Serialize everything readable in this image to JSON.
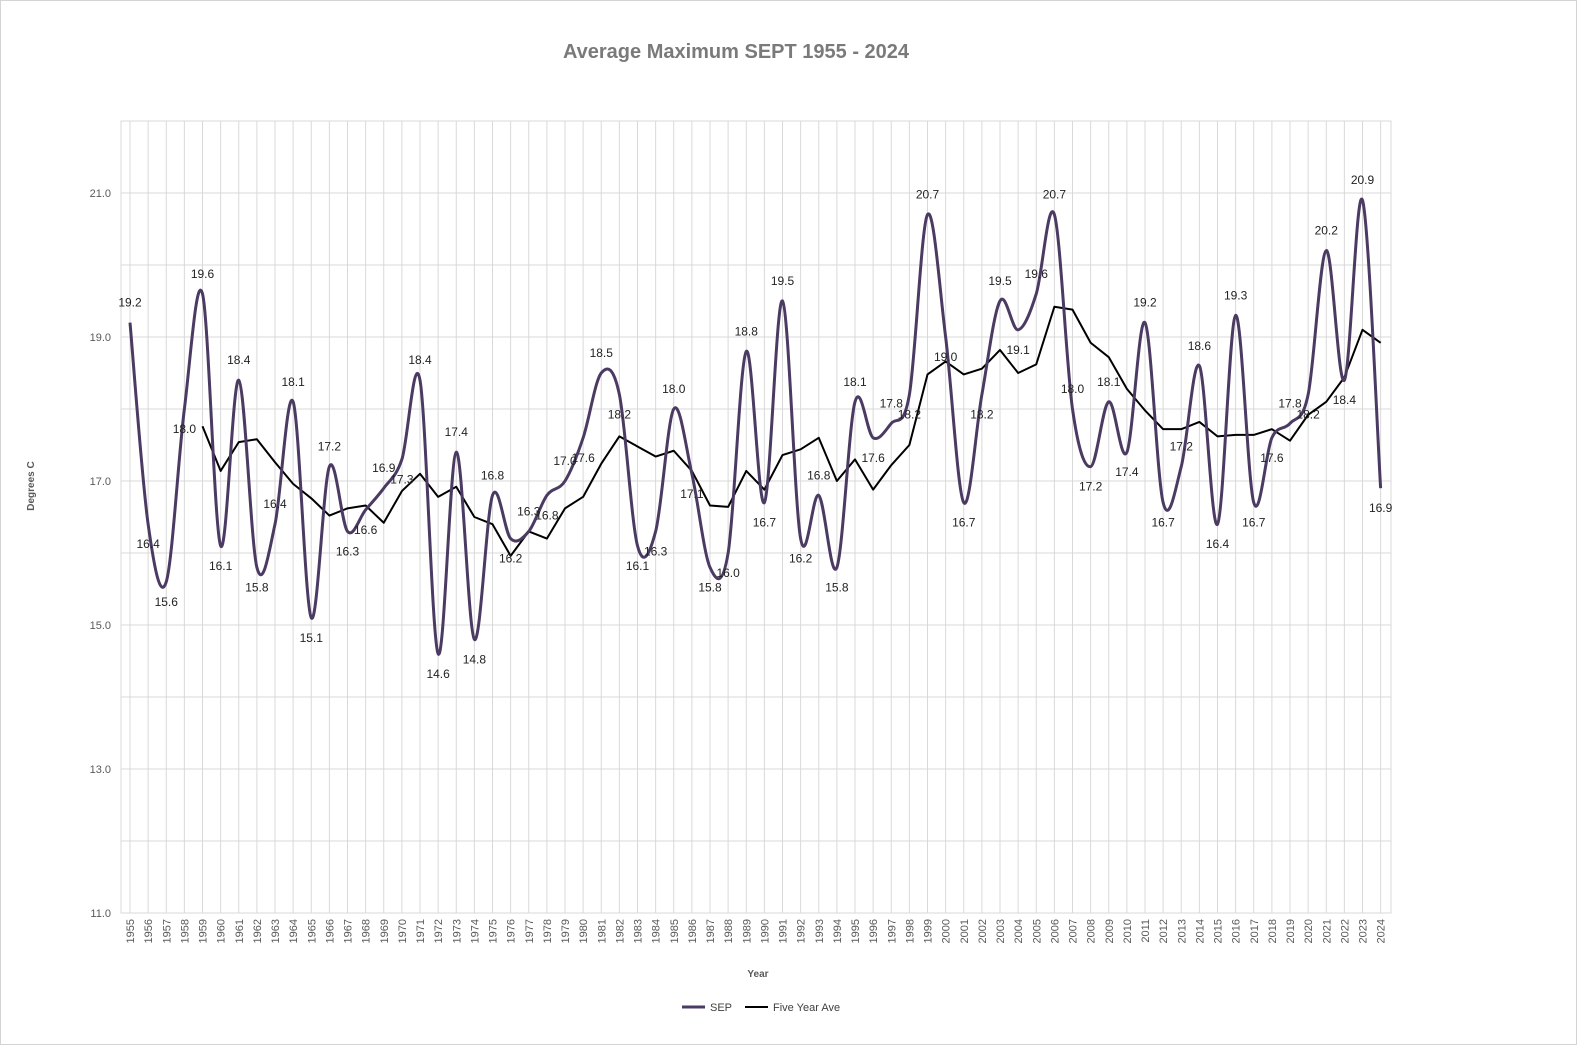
{
  "chart_data": {
    "type": "line",
    "title": "Average Maximum SEPT 1955 - 2024",
    "xlabel": "Year",
    "ylabel": "Degrees C",
    "ylim": [
      11,
      22
    ],
    "y_ticks": [
      "11.0",
      "13.0",
      "15.0",
      "17.0",
      "19.0",
      "21.0"
    ],
    "grid": "on",
    "legend_position": "bottom",
    "colors": {
      "sep": "#4b3b63",
      "avg": "#000000",
      "grid": "#d9d9d9"
    },
    "x": [
      1955,
      1956,
      1957,
      1958,
      1959,
      1960,
      1961,
      1962,
      1963,
      1964,
      1965,
      1966,
      1967,
      1968,
      1969,
      1970,
      1971,
      1972,
      1973,
      1974,
      1975,
      1976,
      1977,
      1978,
      1979,
      1980,
      1981,
      1982,
      1983,
      1984,
      1985,
      1986,
      1987,
      1988,
      1989,
      1990,
      1991,
      1992,
      1993,
      1994,
      1995,
      1996,
      1997,
      1998,
      1999,
      2000,
      2001,
      2002,
      2003,
      2004,
      2005,
      2006,
      2007,
      2008,
      2009,
      2010,
      2011,
      2012,
      2013,
      2014,
      2015,
      2016,
      2017,
      2018,
      2019,
      2020,
      2021,
      2022,
      2023,
      2024
    ],
    "x_labels": [
      "1955",
      "1956",
      "1957",
      "1958",
      "1959",
      "1960",
      "1961",
      "1962",
      "1963",
      "1964",
      "1965",
      "1966",
      "1967",
      "1968",
      "1969",
      "1970",
      "1971",
      "1972",
      "1973",
      "1974",
      "1975",
      "1976",
      "1977",
      "1978",
      "1979",
      "1980",
      "1981",
      "1982",
      "1983",
      "1984",
      "1985",
      "1986",
      "1987",
      "1988",
      "1989",
      "1990",
      "1991",
      "1992",
      "1993",
      "1994",
      "1995",
      "1996",
      "1997",
      "1998",
      "1999",
      "2000",
      "2001",
      "2002",
      "2003",
      "2004",
      "2005",
      "2006",
      "2007",
      "2008",
      "2009",
      "2010",
      "2011",
      "2012",
      "2013",
      "2014",
      "2015",
      "2016",
      "2017",
      "2018",
      "2019",
      "2020",
      "2021",
      "2022",
      "2023",
      "2024"
    ],
    "series": [
      {
        "name": "SEP",
        "values": [
          19.2,
          16.4,
          15.6,
          18.0,
          19.6,
          16.1,
          18.4,
          15.8,
          16.4,
          18.1,
          15.1,
          17.2,
          16.3,
          16.6,
          16.9,
          17.3,
          18.4,
          14.6,
          17.4,
          14.8,
          16.8,
          16.2,
          16.3,
          16.8,
          17.0,
          17.6,
          18.5,
          18.2,
          16.1,
          16.3,
          18.0,
          17.1,
          15.8,
          16.0,
          18.8,
          16.7,
          19.5,
          16.2,
          16.8,
          15.8,
          18.1,
          17.6,
          17.8,
          18.2,
          20.7,
          19.0,
          16.7,
          18.2,
          19.5,
          19.1,
          19.6,
          20.7,
          18.0,
          17.2,
          18.1,
          17.4,
          19.2,
          16.7,
          17.2,
          18.6,
          16.4,
          19.3,
          16.7,
          17.6,
          17.8,
          18.2,
          20.2,
          18.4,
          20.9,
          16.9
        ]
      },
      {
        "name": "Five Year Ave",
        "values": [
          null,
          null,
          null,
          null,
          17.76,
          17.14,
          17.54,
          17.58,
          17.26,
          16.96,
          16.76,
          16.52,
          16.62,
          16.66,
          16.42,
          16.86,
          17.1,
          16.78,
          16.92,
          16.5,
          16.4,
          15.96,
          16.3,
          16.2,
          16.62,
          16.78,
          17.24,
          17.62,
          17.48,
          17.34,
          17.42,
          17.14,
          16.66,
          16.64,
          17.14,
          16.88,
          17.36,
          17.44,
          17.6,
          17.0,
          17.3,
          16.88,
          17.22,
          17.5,
          18.48,
          18.66,
          18.48,
          18.56,
          18.82,
          18.5,
          18.62,
          19.42,
          19.38,
          18.92,
          18.72,
          18.28,
          17.98,
          17.72,
          17.72,
          17.82,
          17.62,
          17.64,
          17.64,
          17.72,
          17.56,
          17.92,
          18.1,
          18.44,
          19.1,
          18.92
        ]
      }
    ]
  }
}
